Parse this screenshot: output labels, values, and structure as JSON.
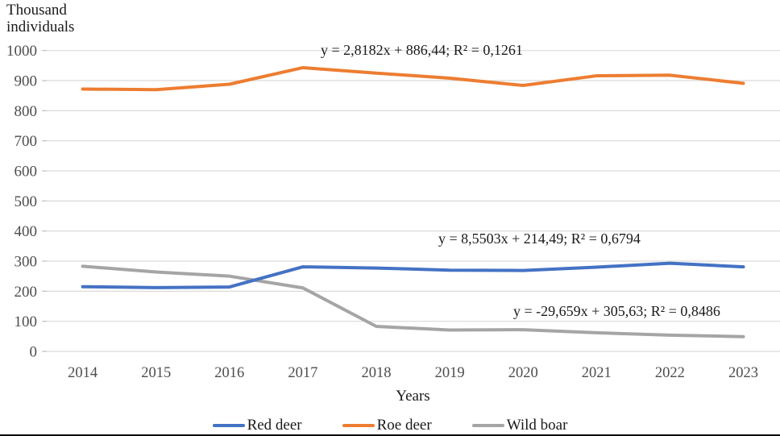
{
  "chart_data": {
    "type": "line",
    "y_axis_title_lines": [
      "Thousand",
      "individuals"
    ],
    "xlabel": "Years",
    "ylim": [
      0,
      1000
    ],
    "yticks": [
      0,
      100,
      200,
      300,
      400,
      500,
      600,
      700,
      800,
      900,
      1000
    ],
    "grid": "horizontal",
    "legend_position": "bottom",
    "categories": [
      "2014",
      "2015",
      "2016",
      "2017",
      "2018",
      "2019",
      "2020",
      "2021",
      "2022",
      "2023"
    ],
    "series": [
      {
        "name": "Red deer",
        "color": "#4472C4",
        "values": [
          215,
          212,
          214,
          281,
          277,
          270,
          269,
          280,
          293,
          281
        ],
        "trendline_label": "y = 8,5503x + 214,49;  R² = 0,6794"
      },
      {
        "name": "Roe deer",
        "color": "#ED7D31",
        "values": [
          872,
          870,
          888,
          943,
          925,
          908,
          884,
          916,
          918,
          891
        ],
        "trendline_label": "y = 2,8182x + 886,44;  R² = 0,1261"
      },
      {
        "name": "Wild boar",
        "color": "#A5A5A5",
        "values": [
          283,
          264,
          250,
          211,
          83,
          71,
          72,
          62,
          54,
          49
        ],
        "trendline_label": "y = -29,659x + 305,63;  R² = 0,8486"
      }
    ],
    "colors": {
      "gridline": "#D9D9D9",
      "axis_tick": "#BFBFBF",
      "tick_text": "#4d4d4d",
      "text": "#1a1a1a"
    }
  }
}
